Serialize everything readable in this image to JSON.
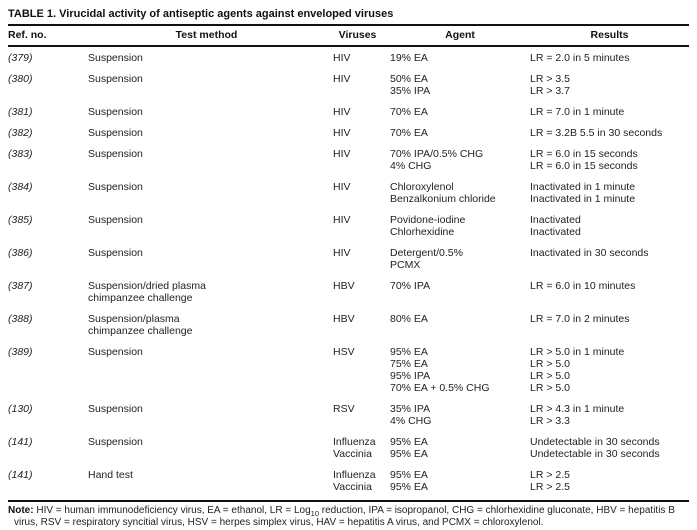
{
  "title": "TABLE 1. Virucidal activity of antiseptic agents against enveloped viruses",
  "table": {
    "headers": [
      "Ref. no.",
      "Test method",
      "Viruses",
      "Agent",
      "Results"
    ],
    "rows": [
      {
        "ref": "(379)",
        "method": "Suspension",
        "viruses": "HIV",
        "agent": "19% EA",
        "results": "LR = 2.0 in 5 minutes"
      },
      {
        "ref": "(380)",
        "method": "Suspension",
        "viruses": "HIV",
        "agent": "50% EA\n35% IPA",
        "results": "LR > 3.5\nLR > 3.7"
      },
      {
        "ref": "(381)",
        "method": "Suspension",
        "viruses": "HIV",
        "agent": "70% EA",
        "results": "LR = 7.0 in 1 minute"
      },
      {
        "ref": "(382)",
        "method": "Suspension",
        "viruses": "HIV",
        "agent": "70% EA",
        "results": "LR = 3.2B 5.5 in 30 seconds"
      },
      {
        "ref": "(383)",
        "method": "Suspension",
        "viruses": "HIV",
        "agent": "70% IPA/0.5% CHG\n4% CHG",
        "results": "LR = 6.0 in 15 seconds\nLR = 6.0 in 15 seconds"
      },
      {
        "ref": "(384)",
        "method": "Suspension",
        "viruses": "HIV",
        "agent": "Chloroxylenol\nBenzalkonium chloride",
        "results": "Inactivated in 1 minute\nInactivated in 1 minute"
      },
      {
        "ref": "(385)",
        "method": "Suspension",
        "viruses": "HIV",
        "agent": "Povidone-iodine\nChlorhexidine",
        "results": "Inactivated\nInactivated"
      },
      {
        "ref": "(386)",
        "method": "Suspension",
        "viruses": "HIV",
        "agent": "Detergent/0.5%\nPCMX",
        "results": "Inactivated in 30 seconds"
      },
      {
        "ref": "(387)",
        "method": "Suspension/dried plasma\nchimpanzee challenge",
        "viruses": "HBV",
        "agent": "70% IPA",
        "results": "LR = 6.0 in 10 minutes"
      },
      {
        "ref": "(388)",
        "method": "Suspension/plasma\nchimpanzee challenge",
        "viruses": "HBV",
        "agent": "80% EA",
        "results": "LR = 7.0 in 2 minutes"
      },
      {
        "ref": "(389)",
        "method": "Suspension",
        "viruses": "HSV",
        "agent": "95% EA\n75% EA\n95% IPA\n70% EA + 0.5% CHG",
        "results": "LR > 5.0 in 1 minute\nLR > 5.0\nLR > 5.0\nLR > 5.0"
      },
      {
        "ref": "(130)",
        "method": "Suspension",
        "viruses": "RSV",
        "agent": "35% IPA\n4% CHG",
        "results": "LR > 4.3 in 1 minute\nLR > 3.3"
      },
      {
        "ref": "(141)",
        "method": "Suspension",
        "viruses": "Influenza\nVaccinia",
        "agent": "95% EA\n95% EA",
        "results": "Undetectable in 30 seconds\nUndetectable in 30 seconds"
      },
      {
        "ref": "(141)",
        "method": "Hand test",
        "viruses": "Influenza\nVaccinia",
        "agent": "95% EA\n95% EA",
        "results": "LR > 2.5\nLR > 2.5"
      }
    ]
  },
  "note": {
    "label": "Note:",
    "before_sub": " HIV = human immunodeficiency virus, EA = ethanol, LR = Log",
    "sub": "10",
    "after_sub": " reduction, IPA = isopropanol, CHG = chlorhexidine gluconate, HBV = hepatitis B virus, RSV = respiratory syncitial virus, HSV = herpes simplex virus, HAV = hepatitis A virus, and PCMX = chloroxylenol."
  },
  "colors": {
    "text": "#222222",
    "rule": "#111111",
    "background": "#ffffff"
  }
}
